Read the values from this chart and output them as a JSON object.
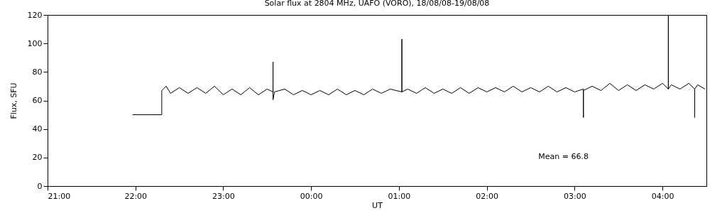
{
  "chart_data": {
    "type": "line",
    "title": "Solar flux at 2804 MHz, UAFO (VORO),  18/08/08-19/08/08",
    "xlabel": "UT",
    "ylabel": "Flux, SFU",
    "x": [
      "--08-18T21:58",
      "--08-18T22:18",
      "--08-18T22:18",
      "--08-18T22:21",
      "--08-18T22:24",
      "--08-18T22:30",
      "--08-18T22:36",
      "--08-18T22:42",
      "--08-18T22:48",
      "--08-18T22:54",
      "--08-18T23:00",
      "--08-18T23:06",
      "--08-18T23:12",
      "--08-18T23:18",
      "--08-18T23:24",
      "--08-18T23:30",
      "--08-18T23:34",
      "--08-18T23:34",
      "--08-18T23:34",
      "--08-18T23:35",
      "--08-18T23:42",
      "--08-18T23:48",
      "--08-18T23:54",
      "--08-19T00:00",
      "--08-19T00:06",
      "--08-19T00:12",
      "--08-19T00:18",
      "--08-19T00:24",
      "--08-19T00:30",
      "--08-19T00:36",
      "--08-19T00:42",
      "--08-19T00:48",
      "--08-19T00:54",
      "--08-19T01:02",
      "--08-19T01:02",
      "--08-19T01:02",
      "--08-19T01:06",
      "--08-19T01:12",
      "--08-19T01:18",
      "--08-19T01:24",
      "--08-19T01:30",
      "--08-19T01:36",
      "--08-19T01:42",
      "--08-19T01:48",
      "--08-19T01:54",
      "--08-19T02:00",
      "--08-19T02:06",
      "--08-19T02:12",
      "--08-19T02:18",
      "--08-19T02:24",
      "--08-19T02:30",
      "--08-19T02:36",
      "--08-19T02:42",
      "--08-19T02:48",
      "--08-19T02:54",
      "--08-19T03:00",
      "--08-19T03:06",
      "--08-19T03:06",
      "--08-19T03:06",
      "--08-19T03:12",
      "--08-19T03:18",
      "--08-19T03:24",
      "--08-19T03:30",
      "--08-19T03:36",
      "--08-19T03:42",
      "--08-19T03:48",
      "--08-19T03:54",
      "--08-19T04:00",
      "--08-19T04:04",
      "--08-19T04:04",
      "--08-19T04:04",
      "--08-19T04:06",
      "--08-19T04:12",
      "--08-19T04:18",
      "--08-19T04:22",
      "--08-19T04:22",
      "--08-19T04:22",
      "--08-19T04:24",
      "--08-19T04:29"
    ],
    "series": [
      {
        "color": "#000000",
        "values": [
          50,
          50,
          67,
          70,
          65,
          69,
          65,
          69,
          65,
          70,
          64,
          68,
          64,
          69,
          64,
          68,
          66,
          87,
          60.5,
          66,
          68,
          64,
          67,
          64,
          67,
          64,
          68,
          64,
          67,
          64,
          68,
          65,
          68,
          66,
          103,
          66,
          68,
          65,
          69,
          65,
          68,
          65,
          69,
          65,
          69,
          66,
          69,
          66,
          70,
          66,
          69,
          66,
          70,
          66,
          69,
          66,
          68,
          48,
          67,
          70,
          67,
          72,
          67,
          71,
          67,
          71,
          68,
          72,
          68,
          120,
          68,
          71,
          68,
          72,
          68,
          48,
          68,
          71,
          68
        ]
      }
    ],
    "xlim": [
      "--08-18T21:00",
      "--08-19T04:30"
    ],
    "xticks": [
      {
        "value": "--08-18T21:00",
        "label": "21:00"
      },
      {
        "value": "--08-18T22:00",
        "label": "22:00"
      },
      {
        "value": "--08-18T23:00",
        "label": "23:00"
      },
      {
        "value": "--08-19T00:00",
        "label": "00:00"
      },
      {
        "value": "--08-19T01:00",
        "label": "01:00"
      },
      {
        "value": "--08-19T02:00",
        "label": "02:00"
      },
      {
        "value": "--08-19T03:00",
        "label": "03:00"
      },
      {
        "value": "--08-19T04:00",
        "label": "04:00"
      }
    ],
    "ylim": [
      0,
      120
    ],
    "yticks": [
      0,
      20,
      40,
      60,
      80,
      100,
      120
    ],
    "annotations": [
      "Mean =    66.8"
    ],
    "grid": false,
    "legend": false,
    "marker": "none",
    "line_style": "solid"
  }
}
